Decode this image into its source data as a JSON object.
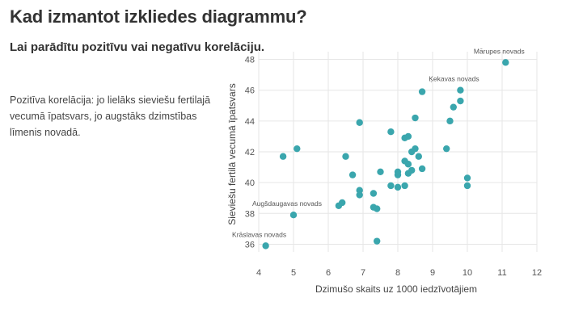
{
  "title": "Kad izmantot izkliedes diagrammu?",
  "subtitle": "Lai parādītu pozitīvu vai negatīvu korelāciju.",
  "description": "Pozitīva korelācija: jo lielāks sieviešu fertilajā vecumā īpatsvars, jo augstāks dzimstības līmenis novadā.",
  "colors": {
    "point": "#3aa6ad",
    "grid": "#e6e6e6"
  },
  "chart_data": {
    "type": "scatter",
    "title": "",
    "xlabel": "Dzimušo skaits uz 1000 iedzīvotājiem",
    "ylabel": "Sieviešu fertilā vecumā īpatsvars",
    "xlim": [
      4,
      12
    ],
    "ylim": [
      35.5,
      48.5
    ],
    "x_ticks": [
      "4",
      "5",
      "6",
      "7",
      "8",
      "9",
      "10",
      "11",
      "12"
    ],
    "y_ticks": [
      "36",
      "38",
      "40",
      "42",
      "44",
      "46",
      "48"
    ],
    "grid": true,
    "points": [
      {
        "x": 11.1,
        "y": 47.8,
        "label": "Mārupes novads"
      },
      {
        "x": 9.8,
        "y": 46.0,
        "label": "Ķekavas novads"
      },
      {
        "x": 8.7,
        "y": 45.9
      },
      {
        "x": 9.8,
        "y": 45.3
      },
      {
        "x": 9.6,
        "y": 44.9
      },
      {
        "x": 8.5,
        "y": 44.2
      },
      {
        "x": 9.5,
        "y": 44.0
      },
      {
        "x": 6.9,
        "y": 43.9
      },
      {
        "x": 7.8,
        "y": 43.3
      },
      {
        "x": 8.2,
        "y": 42.9
      },
      {
        "x": 8.3,
        "y": 43.0
      },
      {
        "x": 5.1,
        "y": 42.2
      },
      {
        "x": 9.4,
        "y": 42.2
      },
      {
        "x": 8.5,
        "y": 42.2
      },
      {
        "x": 8.4,
        "y": 42.0
      },
      {
        "x": 4.7,
        "y": 41.7
      },
      {
        "x": 6.5,
        "y": 41.7
      },
      {
        "x": 8.6,
        "y": 41.7
      },
      {
        "x": 8.2,
        "y": 41.4
      },
      {
        "x": 8.3,
        "y": 41.2
      },
      {
        "x": 8.7,
        "y": 40.9
      },
      {
        "x": 8.4,
        "y": 40.8
      },
      {
        "x": 7.5,
        "y": 40.7
      },
      {
        "x": 8.0,
        "y": 40.7
      },
      {
        "x": 8.0,
        "y": 40.5
      },
      {
        "x": 8.3,
        "y": 40.6
      },
      {
        "x": 6.7,
        "y": 40.5
      },
      {
        "x": 10.0,
        "y": 40.3
      },
      {
        "x": 10.0,
        "y": 39.8
      },
      {
        "x": 7.8,
        "y": 39.8
      },
      {
        "x": 8.0,
        "y": 39.7
      },
      {
        "x": 8.2,
        "y": 39.8
      },
      {
        "x": 6.9,
        "y": 39.5
      },
      {
        "x": 6.9,
        "y": 39.2
      },
      {
        "x": 7.3,
        "y": 39.3
      },
      {
        "x": 6.4,
        "y": 38.7
      },
      {
        "x": 6.3,
        "y": 38.5
      },
      {
        "x": 7.3,
        "y": 38.4
      },
      {
        "x": 7.4,
        "y": 38.3
      },
      {
        "x": 5.0,
        "y": 37.9,
        "label": "Augšdaugavas novads"
      },
      {
        "x": 7.4,
        "y": 36.2
      },
      {
        "x": 4.2,
        "y": 35.9,
        "label": "Krāslavas novads"
      }
    ]
  }
}
